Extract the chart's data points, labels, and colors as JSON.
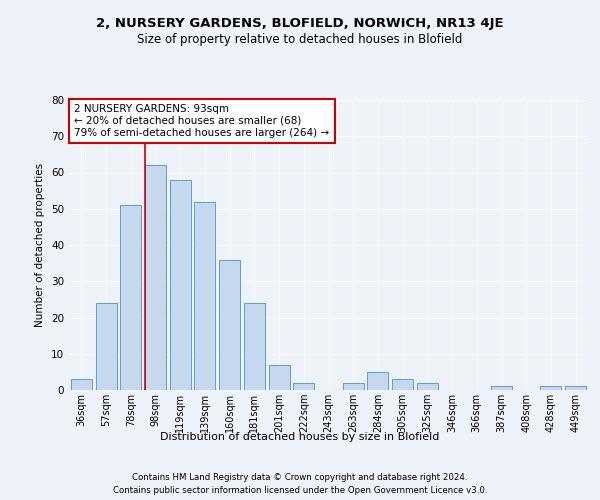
{
  "title1": "2, NURSERY GARDENS, BLOFIELD, NORWICH, NR13 4JE",
  "title2": "Size of property relative to detached houses in Blofield",
  "xlabel": "Distribution of detached houses by size in Blofield",
  "ylabel": "Number of detached properties",
  "categories": [
    "36sqm",
    "57sqm",
    "78sqm",
    "98sqm",
    "119sqm",
    "139sqm",
    "160sqm",
    "181sqm",
    "201sqm",
    "222sqm",
    "243sqm",
    "263sqm",
    "284sqm",
    "305sqm",
    "325sqm",
    "346sqm",
    "366sqm",
    "387sqm",
    "408sqm",
    "428sqm",
    "449sqm"
  ],
  "values": [
    3,
    24,
    51,
    62,
    58,
    52,
    36,
    24,
    7,
    2,
    0,
    2,
    5,
    3,
    2,
    0,
    0,
    1,
    0,
    1,
    1
  ],
  "bar_color": "#c5d8ed",
  "bar_edge_color": "#5a9fd4",
  "vline_x": 2.575,
  "vline_color": "#cc0000",
  "annotation_text": "2 NURSERY GARDENS: 93sqm\n← 20% of detached houses are smaller (68)\n79% of semi-detached houses are larger (264) →",
  "annotation_box_color": "#ffffff",
  "annotation_box_edge_color": "#cc0000",
  "ylim": [
    0,
    80
  ],
  "yticks": [
    0,
    10,
    20,
    30,
    40,
    50,
    60,
    70,
    80
  ],
  "footer1": "Contains HM Land Registry data © Crown copyright and database right 2024.",
  "footer2": "Contains public sector information licensed under the Open Government Licence v3.0.",
  "bg_color": "#eef2f9",
  "plot_bg_color": "#eef2f9"
}
